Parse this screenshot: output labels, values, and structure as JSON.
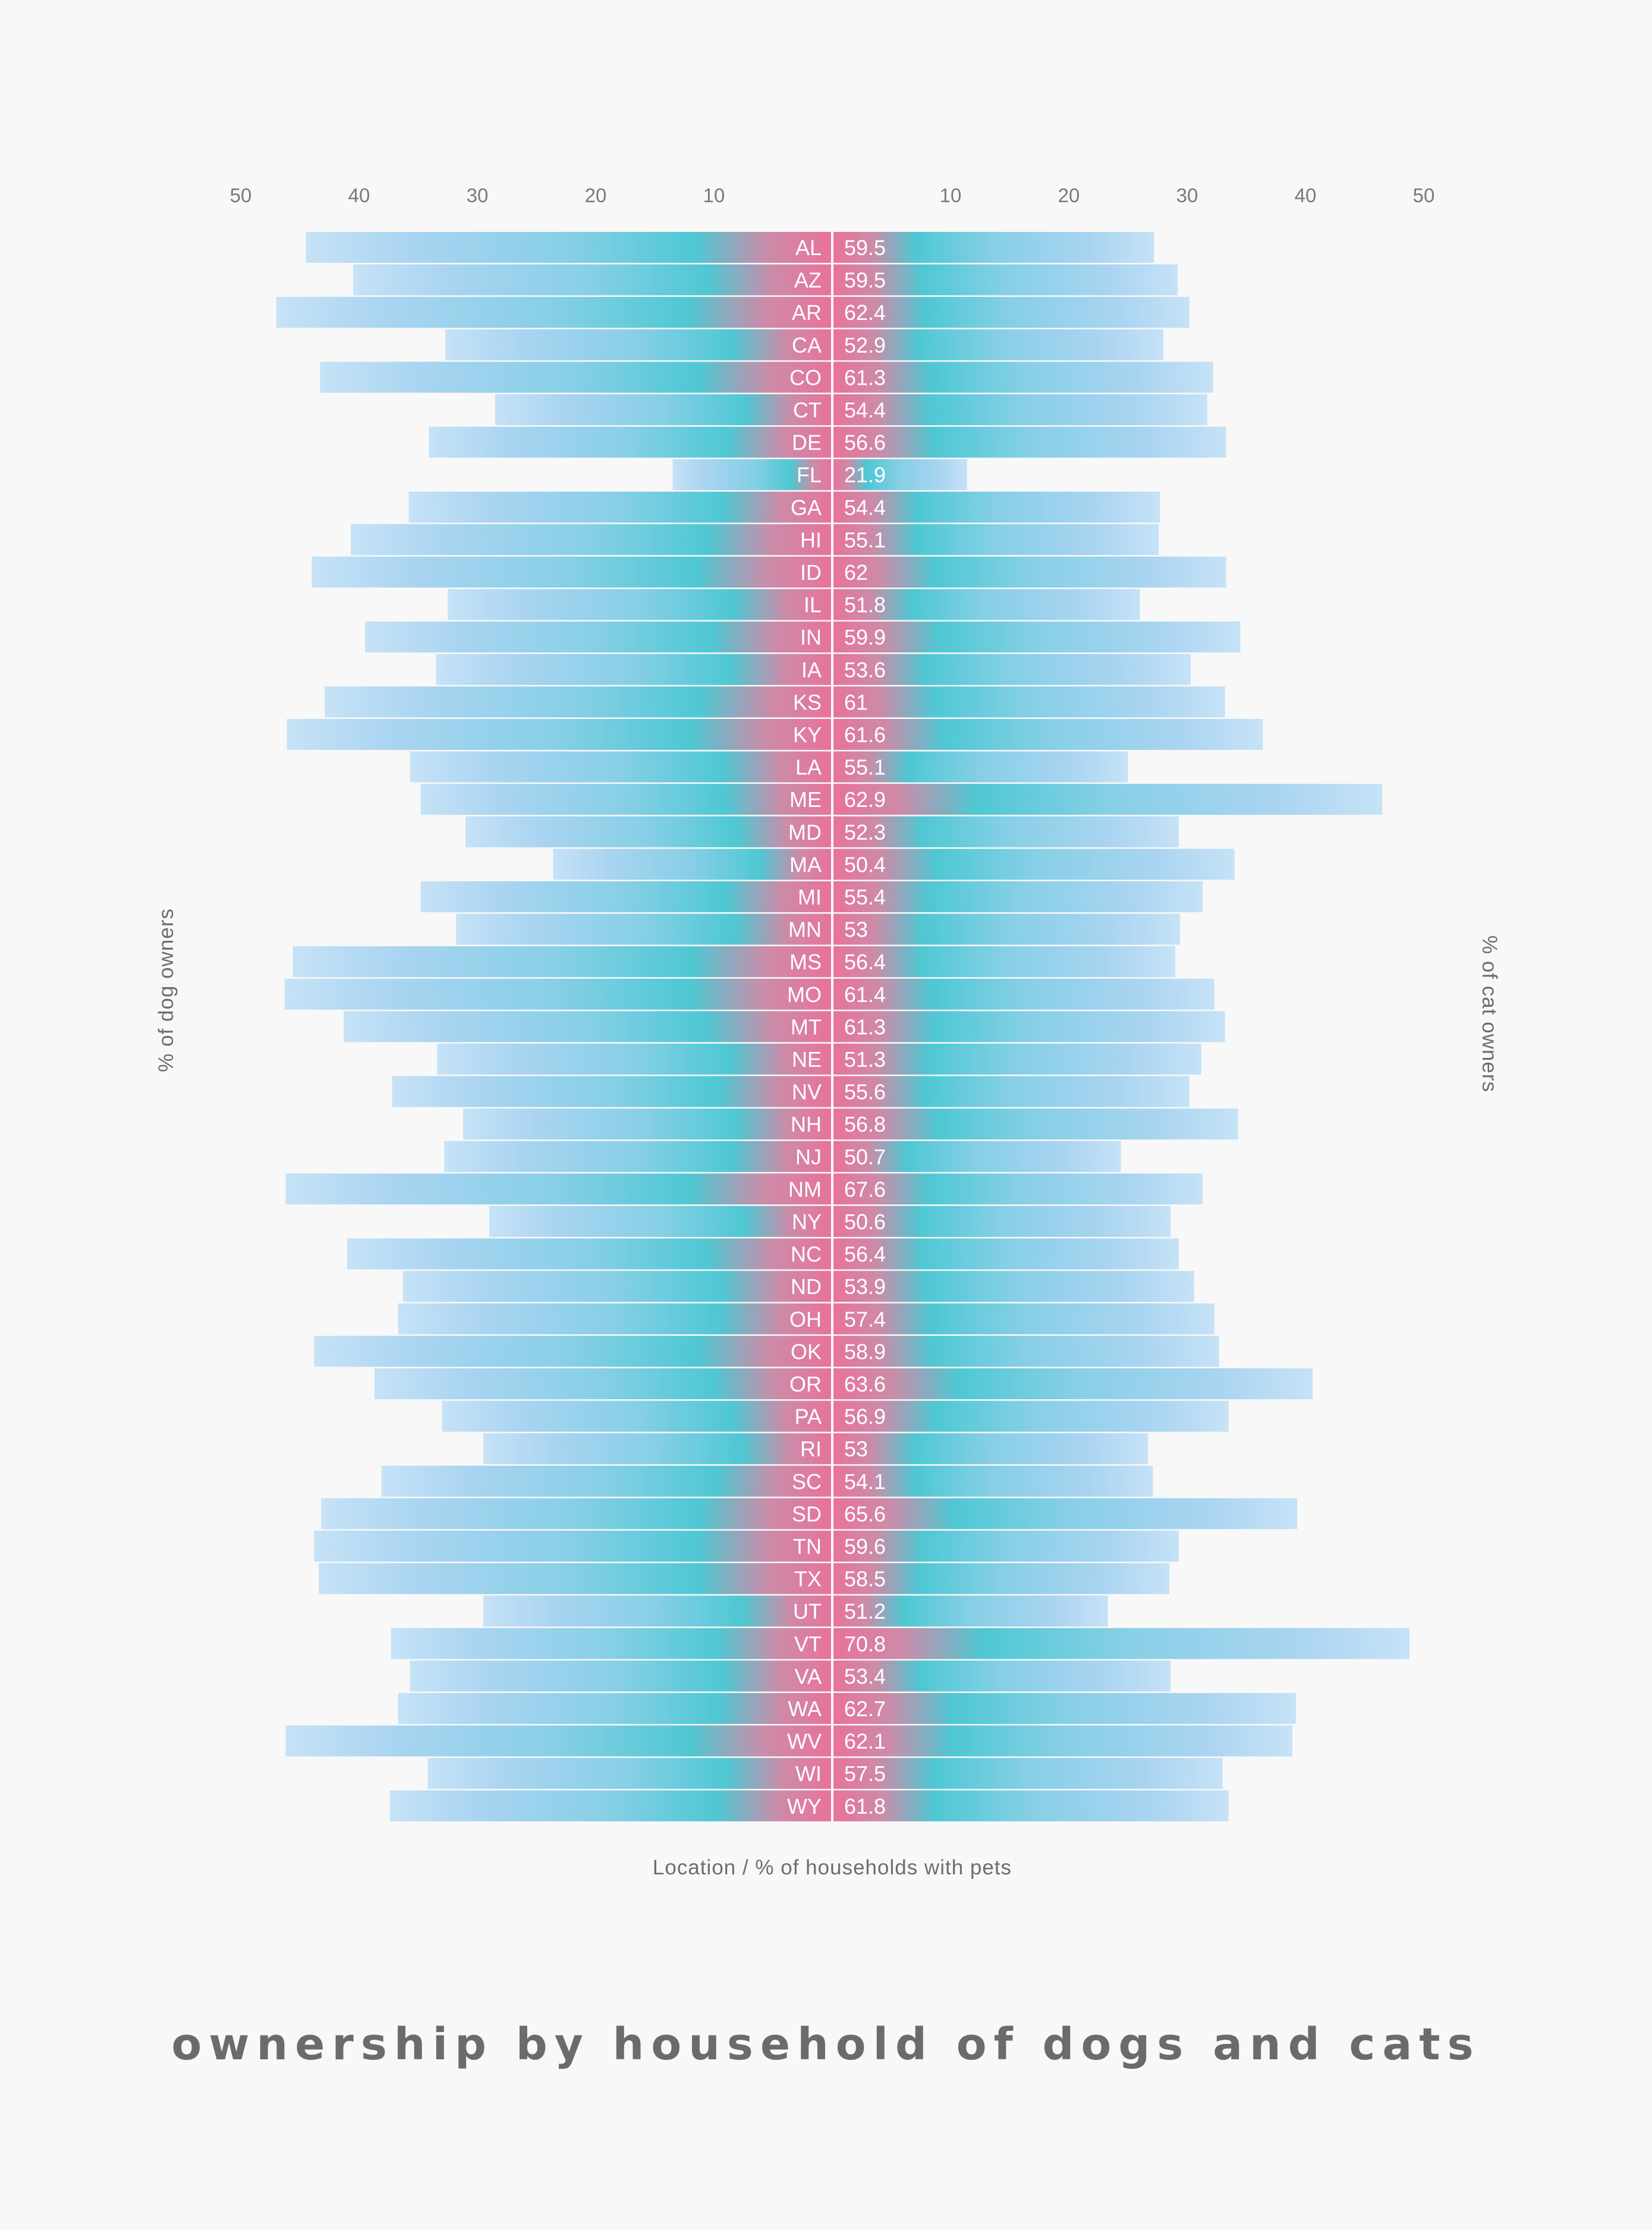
{
  "chart_data": {
    "type": "bar",
    "title": "ownership by household of dogs and cats",
    "xlabel": "Location / % of households with pets",
    "left_axis_label": "% of dog owners",
    "right_axis_label": "% of cat owners",
    "xlim": [
      0,
      50
    ],
    "left_ticks": [
      50,
      40,
      30,
      20,
      10
    ],
    "right_ticks": [
      10,
      20,
      30,
      40,
      50
    ],
    "categories": [
      "AL",
      "AZ",
      "AR",
      "CA",
      "CO",
      "CT",
      "DE",
      "FL",
      "GA",
      "HI",
      "ID",
      "IL",
      "IN",
      "IA",
      "KS",
      "KY",
      "LA",
      "ME",
      "MD",
      "MA",
      "MI",
      "MN",
      "MS",
      "MO",
      "MT",
      "NE",
      "NV",
      "NH",
      "NJ",
      "NM",
      "NY",
      "NC",
      "ND",
      "OH",
      "OK",
      "OR",
      "PA",
      "RI",
      "SC",
      "SD",
      "TN",
      "TX",
      "UT",
      "VT",
      "VA",
      "WA",
      "WV",
      "WI",
      "WY"
    ],
    "series": [
      {
        "name": "% of dog owners",
        "values": [
          44.5,
          40.5,
          47.0,
          32.7,
          43.3,
          28.5,
          34.1,
          13.5,
          35.8,
          40.7,
          44.0,
          32.5,
          39.5,
          33.5,
          42.9,
          46.1,
          35.7,
          34.8,
          31.0,
          23.6,
          34.8,
          31.8,
          45.6,
          46.3,
          41.3,
          33.4,
          37.2,
          31.2,
          32.8,
          46.2,
          29.0,
          41.0,
          36.3,
          36.7,
          43.8,
          38.7,
          33.0,
          29.5,
          38.1,
          43.2,
          43.8,
          43.4,
          29.5,
          37.3,
          35.7,
          36.7,
          46.2,
          34.2,
          37.4
        ]
      },
      {
        "name": "% of cat owners",
        "values": [
          27.2,
          29.2,
          30.2,
          28.0,
          32.2,
          31.7,
          33.3,
          11.4,
          27.7,
          27.6,
          33.3,
          26.0,
          34.5,
          30.3,
          33.2,
          36.4,
          25.0,
          46.5,
          29.3,
          34.0,
          31.3,
          29.4,
          29.0,
          32.3,
          33.2,
          31.2,
          30.2,
          34.3,
          24.4,
          31.3,
          28.6,
          29.3,
          30.6,
          32.3,
          32.7,
          40.6,
          33.5,
          26.7,
          27.1,
          39.3,
          29.3,
          28.5,
          23.3,
          48.8,
          28.6,
          39.2,
          38.9,
          33.0,
          33.5
        ]
      }
    ],
    "household_pct": [
      "59.5",
      "59.5",
      "62.4",
      "52.9",
      "61.3",
      "54.4",
      "56.6",
      "21.9",
      "54.4",
      "55.1",
      "62",
      "51.8",
      "59.9",
      "53.6",
      "61",
      "61.6",
      "55.1",
      "62.9",
      "52.3",
      "50.4",
      "55.4",
      "53",
      "56.4",
      "61.4",
      "61.3",
      "51.3",
      "55.6",
      "56.8",
      "50.7",
      "67.6",
      "50.6",
      "56.4",
      "53.9",
      "57.4",
      "58.9",
      "63.6",
      "56.9",
      "53",
      "54.1",
      "65.6",
      "59.6",
      "58.5",
      "51.2",
      "70.8",
      "53.4",
      "62.7",
      "62.1",
      "57.5",
      "61.8"
    ],
    "colors": {
      "bar_light": "#a9d4f1",
      "bar_pale": "#c3e0f6",
      "bar_teal": "#4ec8d3",
      "center_pink": "#e8729b",
      "background": "#f8f8f8"
    }
  }
}
